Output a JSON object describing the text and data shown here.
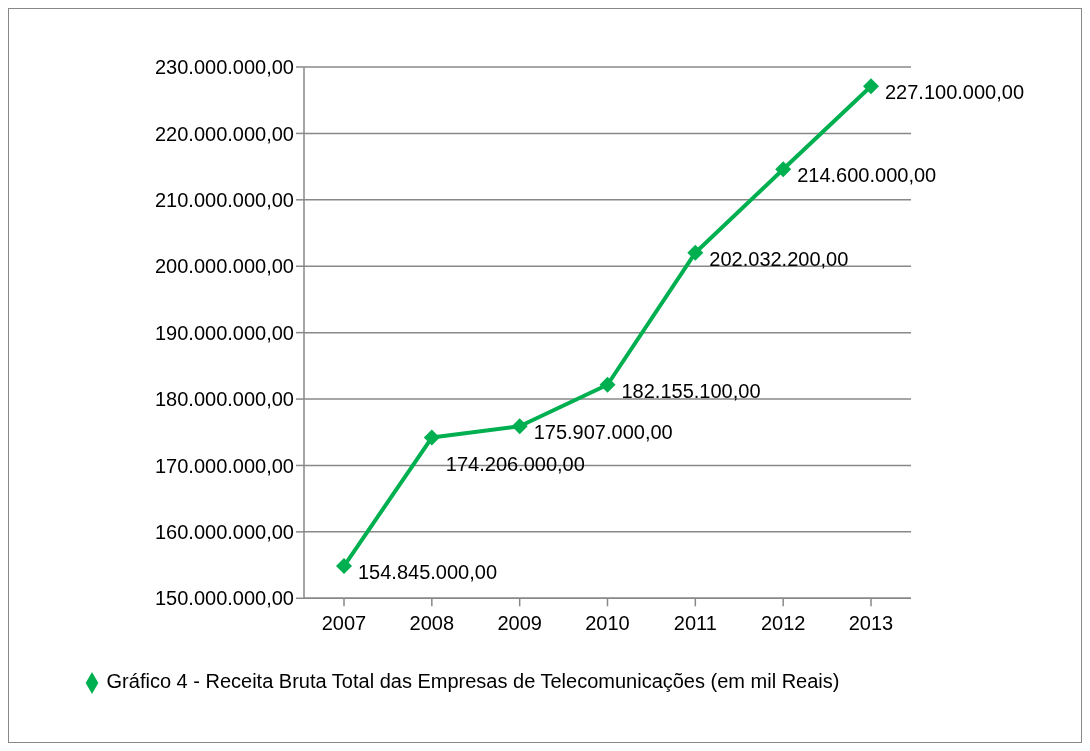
{
  "chart_data": {
    "type": "line",
    "categories": [
      "2007",
      "2008",
      "2009",
      "2010",
      "2011",
      "2012",
      "2013"
    ],
    "series": [
      {
        "name": "Gráfico 4 - Receita Bruta Total das Empresas de Telecomunicações (em mil Reais)",
        "color": "#00b050",
        "values": [
          154845000,
          174206000,
          175907000,
          182155100,
          202032200,
          214600000,
          227100000
        ],
        "value_labels": [
          "154.845.000,00",
          "174.206.000,00",
          "175.907.000,00",
          "182.155.100,00",
          "202.032.200,00",
          "214.600.000,00",
          "227.100.000,00"
        ]
      }
    ],
    "ylim": [
      150000000,
      230000000
    ],
    "yticks": [
      {
        "value": 150000000,
        "label": "150.000.000,00"
      },
      {
        "value": 160000000,
        "label": "160.000.000,00"
      },
      {
        "value": 170000000,
        "label": "170.000.000,00"
      },
      {
        "value": 180000000,
        "label": "180.000.000,00"
      },
      {
        "value": 190000000,
        "label": "190.000.000,00"
      },
      {
        "value": 200000000,
        "label": "200.000.000,00"
      },
      {
        "value": 210000000,
        "label": "210.000.000,00"
      },
      {
        "value": 220000000,
        "label": "220.000.000,00"
      },
      {
        "value": 230000000,
        "label": "230.000.000,00"
      }
    ],
    "grid": "y",
    "legend": "bottom",
    "marker": "diamond",
    "line_style": "solid"
  }
}
